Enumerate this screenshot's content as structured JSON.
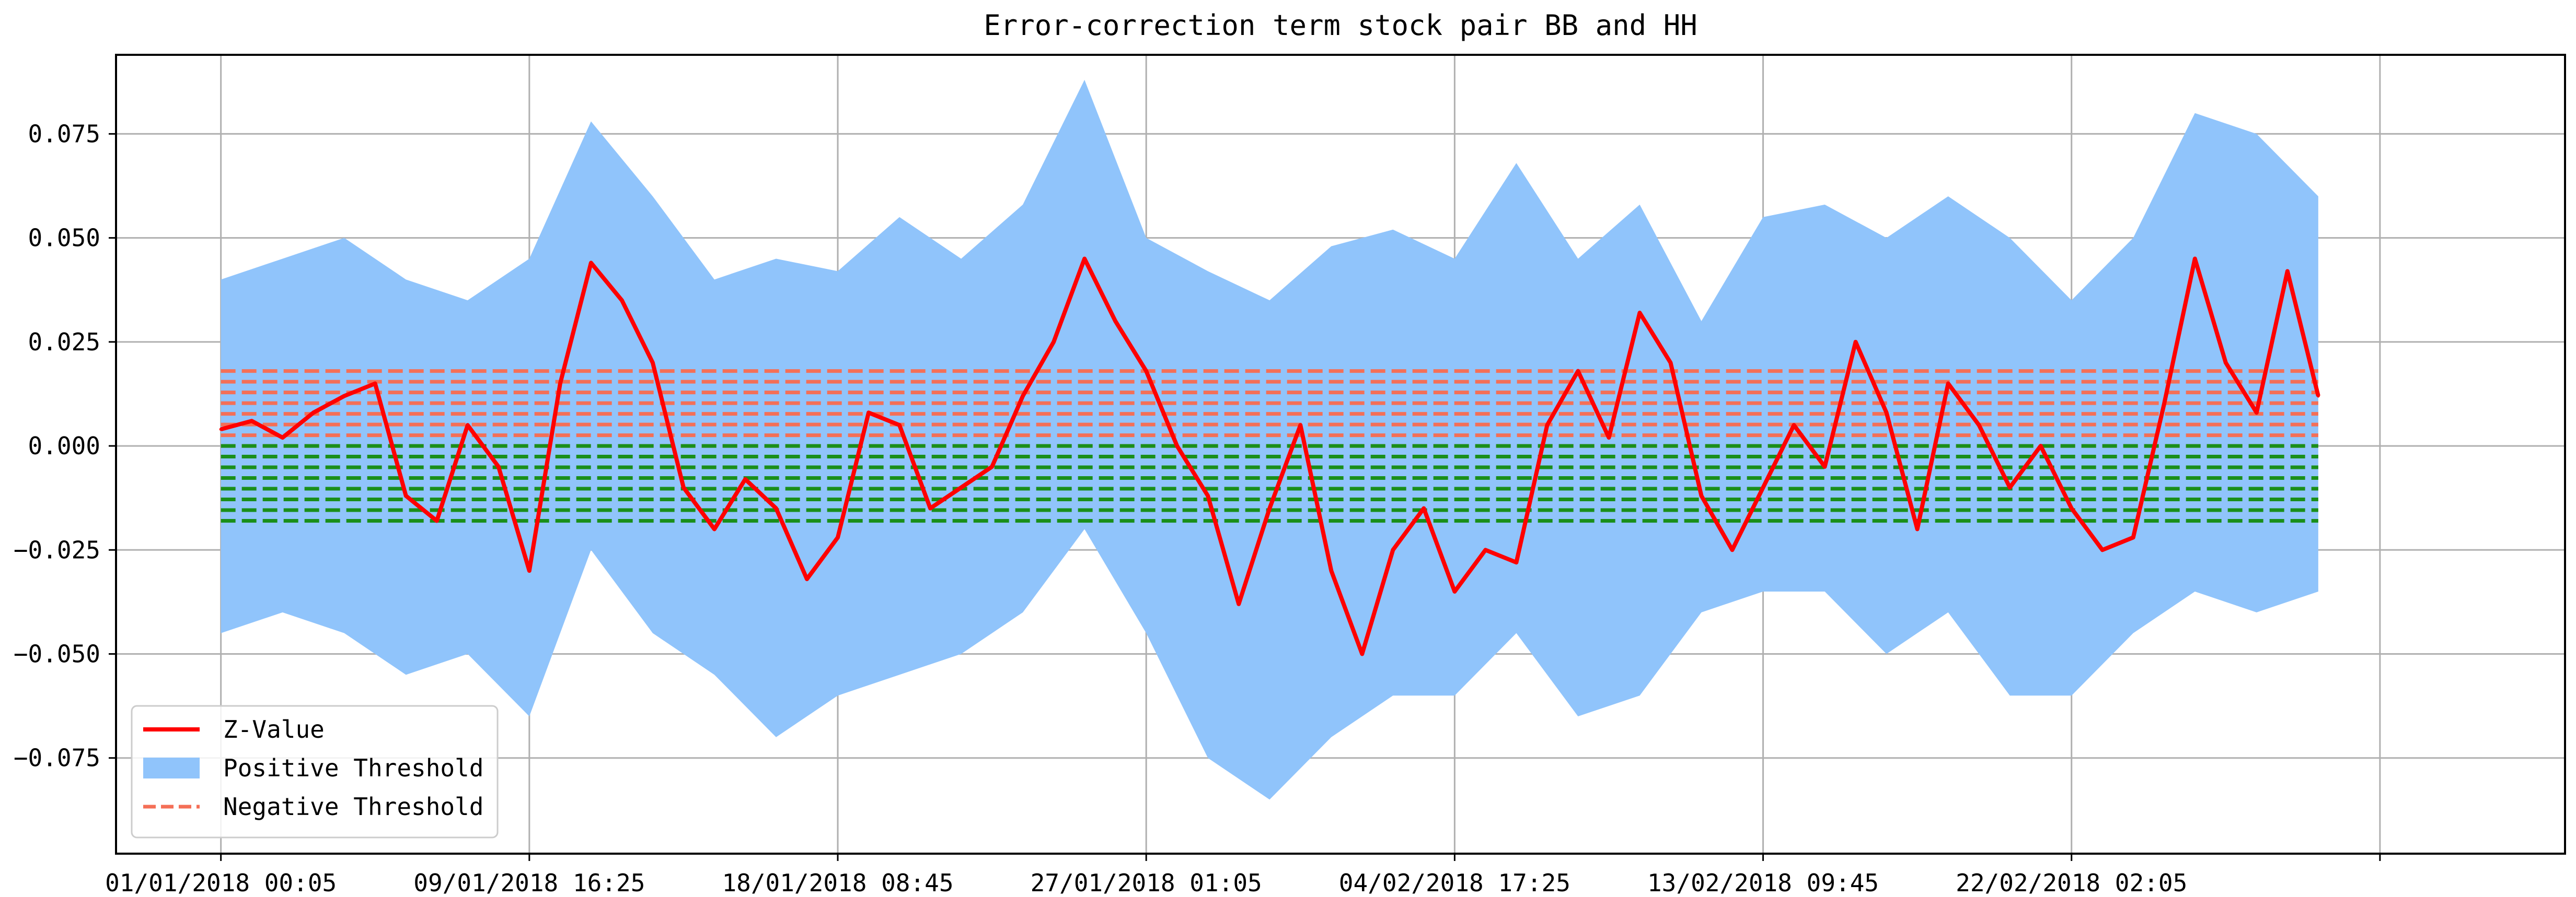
{
  "chart_data": {
    "type": "line",
    "title": "Error-correction term stock pair BB and HH",
    "xlabel": "",
    "ylabel": "",
    "x_range": [
      -0.34,
      7.6
    ],
    "ylim": [
      -0.098,
      0.094
    ],
    "grid": true,
    "legend_position": "lower-left",
    "x_ticks": [
      {
        "pos": 0,
        "label": "01/01/2018 00:05"
      },
      {
        "pos": 1,
        "label": "09/01/2018 16:25"
      },
      {
        "pos": 2,
        "label": "18/01/2018 08:45"
      },
      {
        "pos": 3,
        "label": "27/01/2018 01:05"
      },
      {
        "pos": 4,
        "label": "04/02/2018 17:25"
      },
      {
        "pos": 5,
        "label": "13/02/2018 09:45"
      },
      {
        "pos": 6,
        "label": "22/02/2018 02:05"
      },
      {
        "pos": 7,
        "label": ""
      }
    ],
    "y_ticks": [
      {
        "value": 0.075,
        "label": "0.075"
      },
      {
        "value": 0.05,
        "label": "0.050"
      },
      {
        "value": 0.025,
        "label": "0.025"
      },
      {
        "value": 0.0,
        "label": "0.000"
      },
      {
        "value": -0.025,
        "label": "−0.025"
      },
      {
        "value": -0.05,
        "label": "−0.050"
      },
      {
        "value": -0.075,
        "label": "−0.075"
      }
    ],
    "series": [
      {
        "name": "Z-Value",
        "kind": "line",
        "color": "#ff0000",
        "x": [
          0.0,
          0.1,
          0.2,
          0.3,
          0.4,
          0.5,
          0.6,
          0.7,
          0.8,
          0.9,
          1.0,
          1.1,
          1.2,
          1.3,
          1.4,
          1.5,
          1.6,
          1.7,
          1.8,
          1.9,
          2.0,
          2.1,
          2.2,
          2.3,
          2.4,
          2.5,
          2.6,
          2.7,
          2.8,
          2.9,
          3.0,
          3.1,
          3.2,
          3.3,
          3.4,
          3.5,
          3.6,
          3.7,
          3.8,
          3.9,
          4.0,
          4.1,
          4.2,
          4.3,
          4.4,
          4.5,
          4.6,
          4.7,
          4.8,
          4.9,
          5.0,
          5.1,
          5.2,
          5.3,
          5.4,
          5.5,
          5.6,
          5.7,
          5.8,
          5.9,
          6.0,
          6.1,
          6.2,
          6.3,
          6.4,
          6.5,
          6.6,
          6.7,
          6.8
        ],
        "values": [
          0.004,
          0.006,
          0.002,
          0.008,
          0.012,
          0.015,
          -0.012,
          -0.018,
          0.005,
          -0.005,
          -0.03,
          0.015,
          0.044,
          0.035,
          0.02,
          -0.01,
          -0.02,
          -0.008,
          -0.015,
          -0.032,
          -0.022,
          0.008,
          0.005,
          -0.015,
          -0.01,
          -0.005,
          0.012,
          0.025,
          0.045,
          0.03,
          0.018,
          0.0,
          -0.012,
          -0.038,
          -0.015,
          0.005,
          -0.03,
          -0.05,
          -0.025,
          -0.015,
          -0.035,
          -0.025,
          -0.028,
          0.005,
          0.018,
          0.002,
          0.032,
          0.02,
          -0.012,
          -0.025,
          -0.01,
          0.005,
          -0.005,
          0.025,
          0.008,
          -0.02,
          0.015,
          0.005,
          -0.01,
          0.0,
          -0.015,
          -0.025,
          -0.022,
          0.01,
          0.045,
          0.02,
          0.008,
          0.042,
          0.012
        ]
      },
      {
        "name": "Positive Threshold",
        "kind": "band",
        "color": "#90c4fb",
        "x": [
          0.0,
          0.2,
          0.4,
          0.6,
          0.8,
          1.0,
          1.2,
          1.4,
          1.6,
          1.8,
          2.0,
          2.2,
          2.4,
          2.6,
          2.8,
          3.0,
          3.2,
          3.4,
          3.6,
          3.8,
          4.0,
          4.2,
          4.4,
          4.6,
          4.8,
          5.0,
          5.2,
          5.4,
          5.6,
          5.8,
          6.0,
          6.2,
          6.4,
          6.6,
          6.8
        ],
        "upper": [
          0.04,
          0.045,
          0.05,
          0.04,
          0.035,
          0.045,
          0.078,
          0.06,
          0.04,
          0.045,
          0.042,
          0.055,
          0.045,
          0.058,
          0.088,
          0.05,
          0.042,
          0.035,
          0.048,
          0.052,
          0.045,
          0.068,
          0.045,
          0.058,
          0.03,
          0.055,
          0.058,
          0.05,
          0.06,
          0.05,
          0.035,
          0.05,
          0.08,
          0.075,
          0.06
        ],
        "lower": [
          -0.045,
          -0.04,
          -0.045,
          -0.055,
          -0.05,
          -0.065,
          -0.025,
          -0.045,
          -0.055,
          -0.07,
          -0.06,
          -0.055,
          -0.05,
          -0.04,
          -0.02,
          -0.045,
          -0.075,
          -0.085,
          -0.07,
          -0.06,
          -0.06,
          -0.045,
          -0.065,
          -0.06,
          -0.04,
          -0.035,
          -0.035,
          -0.05,
          -0.04,
          -0.06,
          -0.06,
          -0.045,
          -0.035,
          -0.04,
          -0.035
        ]
      },
      {
        "name": "Negative Threshold",
        "kind": "dashed-band",
        "color": "#f46f57",
        "x_start": 0.0,
        "x_end": 6.8,
        "y_from": 0.0,
        "y_to": 0.018,
        "line_count": 8
      },
      {
        "name": "",
        "kind": "dashed-band",
        "color": "#1a8f1a",
        "x_start": 0.0,
        "x_end": 6.8,
        "y_from": -0.018,
        "y_to": 0.0,
        "line_count": 8
      }
    ],
    "legend": [
      {
        "label": "Z-Value",
        "style": "line",
        "color": "#ff0000"
      },
      {
        "label": "Positive Threshold",
        "style": "patch",
        "color": "#90c4fb"
      },
      {
        "label": "Negative Threshold",
        "style": "dashed",
        "color": "#f46f57"
      }
    ]
  }
}
